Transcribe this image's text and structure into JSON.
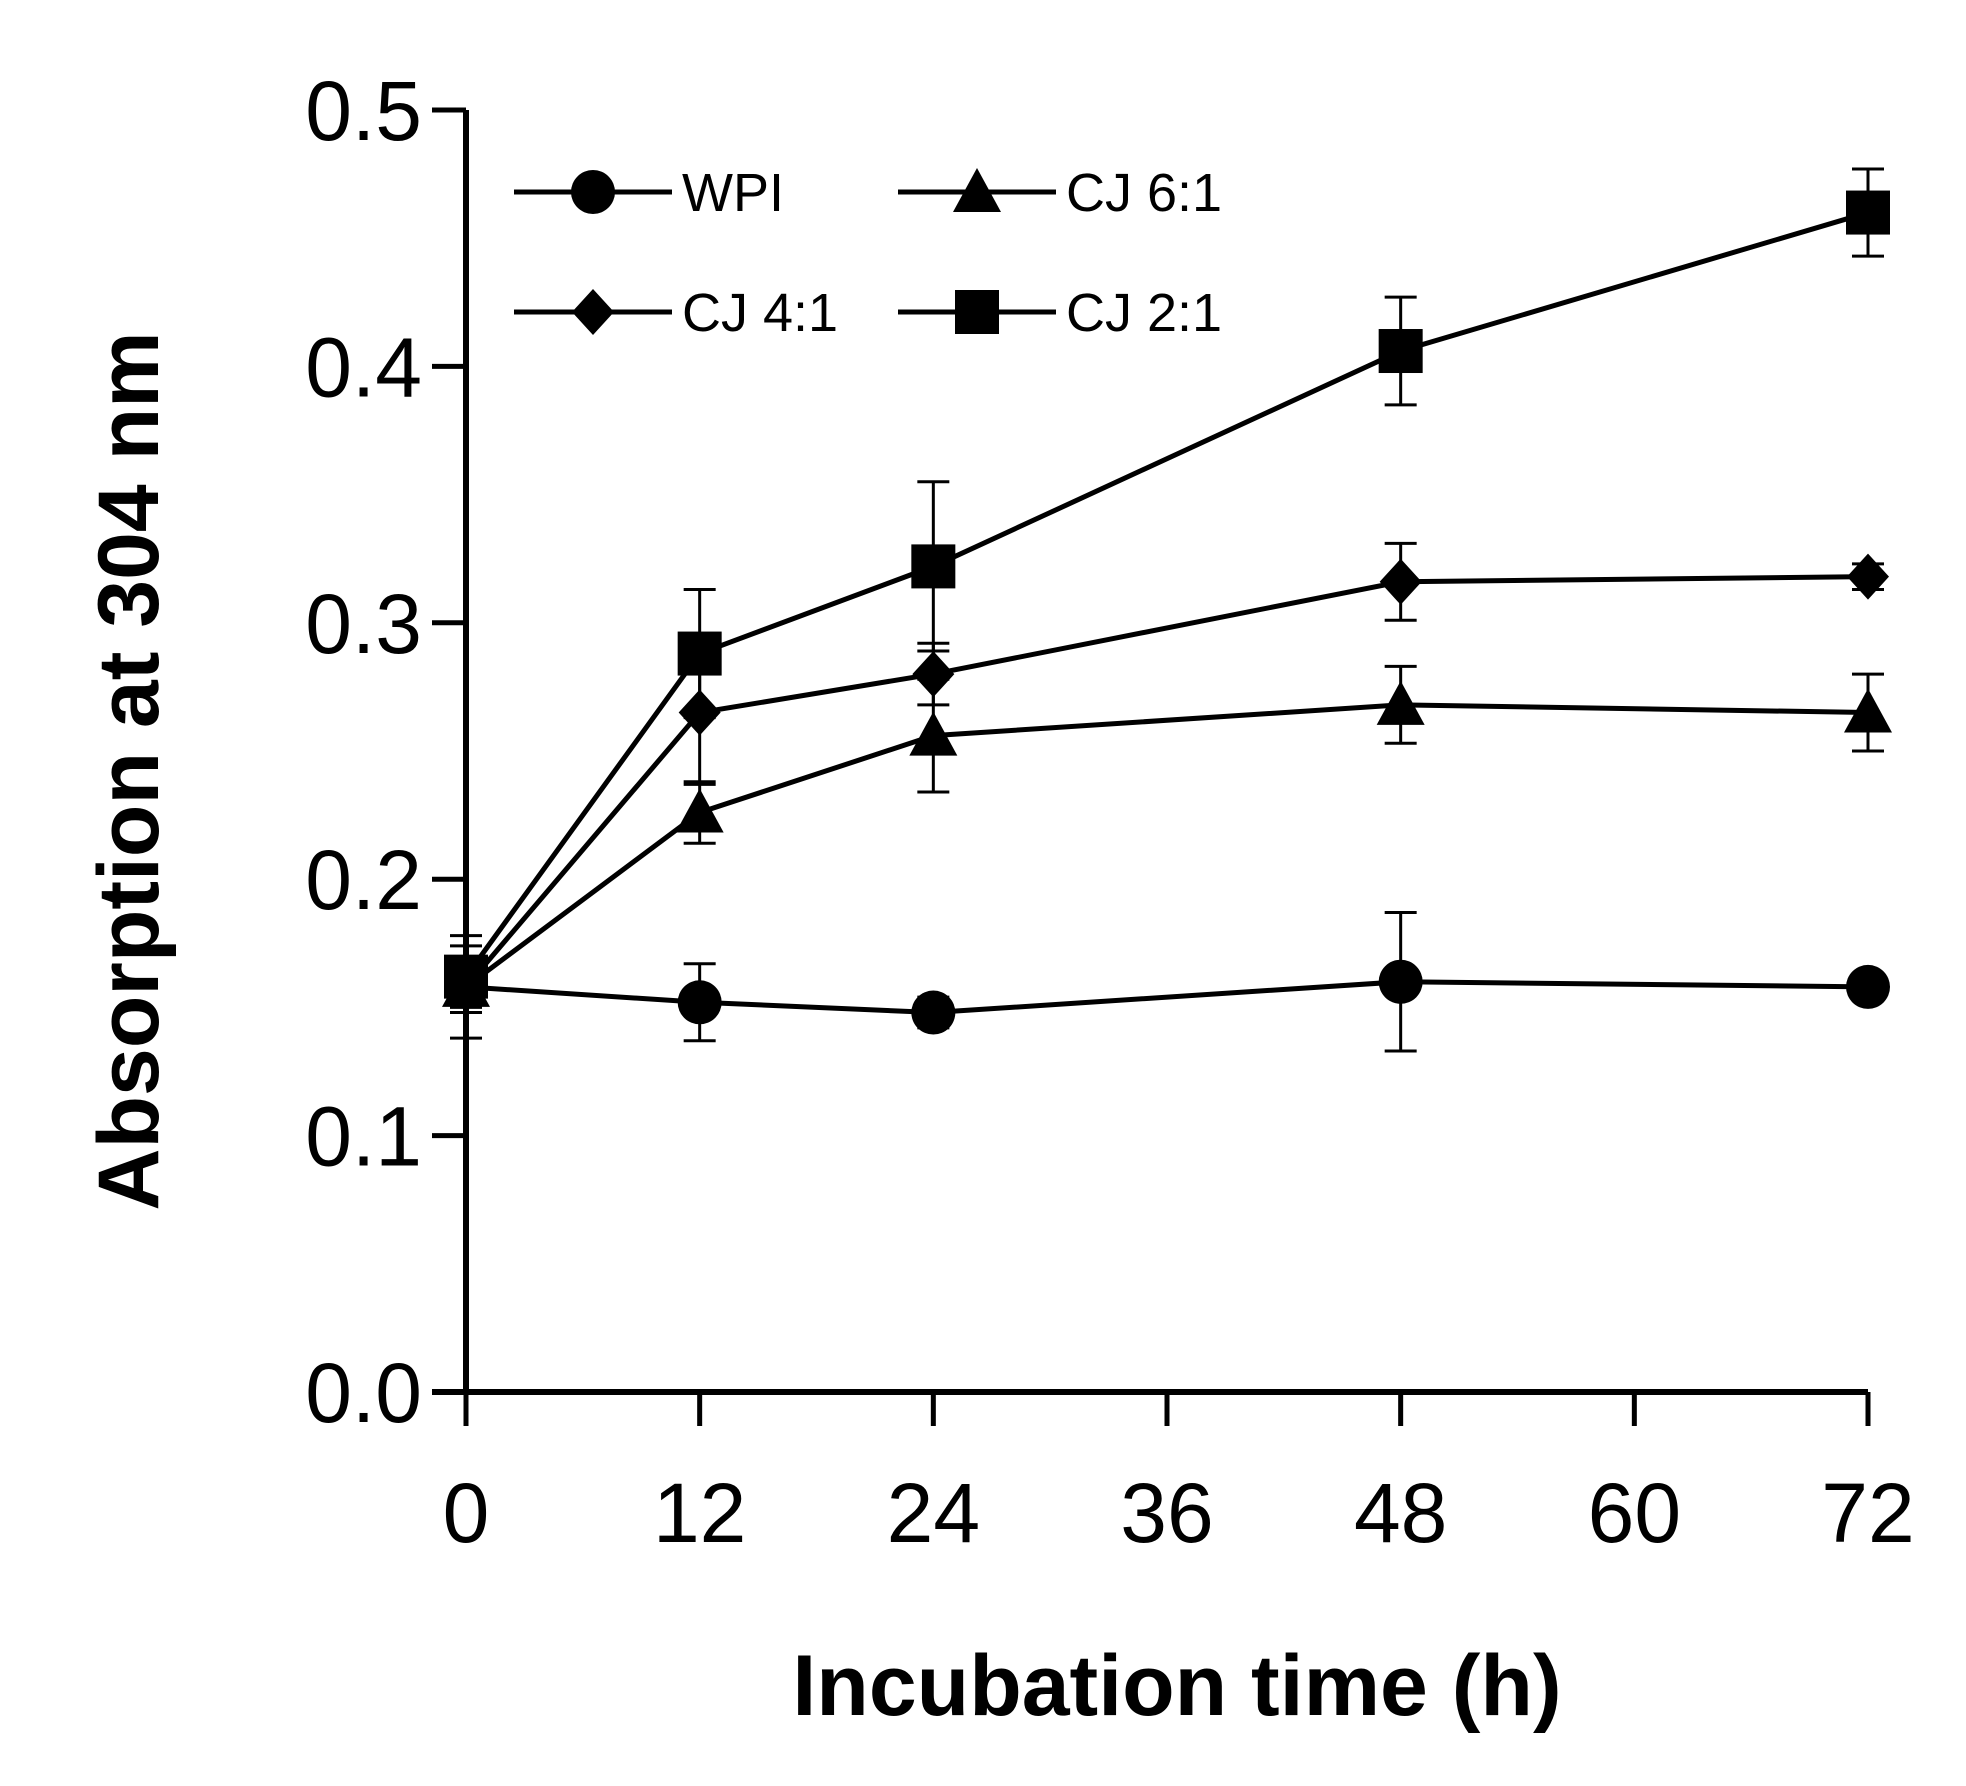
{
  "chart_data": {
    "type": "line",
    "title": "",
    "xlabel": "Incubation time (h)",
    "ylabel": "Absorption at 304 nm",
    "xlim": [
      0,
      72
    ],
    "ylim": [
      0.0,
      0.5
    ],
    "xticks": [
      0,
      12,
      24,
      36,
      48,
      60,
      72
    ],
    "xtick_labels": [
      "0",
      "12",
      "24",
      "36",
      "48",
      "60",
      "72"
    ],
    "yticks": [
      0.0,
      0.1,
      0.2,
      0.3,
      0.4,
      0.5
    ],
    "ytick_labels": [
      "0.0",
      "0.1",
      "0.2",
      "0.3",
      "0.4",
      "0.5"
    ],
    "grid": false,
    "legend_position": "top-left",
    "series": [
      {
        "name": "WPI",
        "marker": "circle",
        "x": [
          0,
          12,
          24,
          48,
          72
        ],
        "values": [
          0.158,
          0.152,
          0.148,
          0.16,
          0.158
        ],
        "errors": [
          0.02,
          0.015,
          0.006,
          0.027,
          0.005
        ]
      },
      {
        "name": "CJ 6:1",
        "marker": "triangle",
        "x": [
          0,
          12,
          24,
          48,
          72
        ],
        "values": [
          0.158,
          0.226,
          0.256,
          0.268,
          0.265
        ],
        "errors": [
          0.01,
          0.012,
          0.022,
          0.015,
          0.015
        ]
      },
      {
        "name": "CJ 4:1",
        "marker": "diamond",
        "x": [
          0,
          12,
          24,
          48,
          72
        ],
        "values": [
          0.158,
          0.265,
          0.28,
          0.316,
          0.318
        ],
        "errors": [
          0.01,
          0.028,
          0.012,
          0.015,
          0.005
        ]
      },
      {
        "name": "CJ 2:1",
        "marker": "square",
        "x": [
          0,
          12,
          24,
          48,
          72
        ],
        "values": [
          0.162,
          0.288,
          0.322,
          0.406,
          0.46
        ],
        "errors": [
          0.012,
          0.025,
          0.033,
          0.021,
          0.017
        ]
      }
    ]
  }
}
